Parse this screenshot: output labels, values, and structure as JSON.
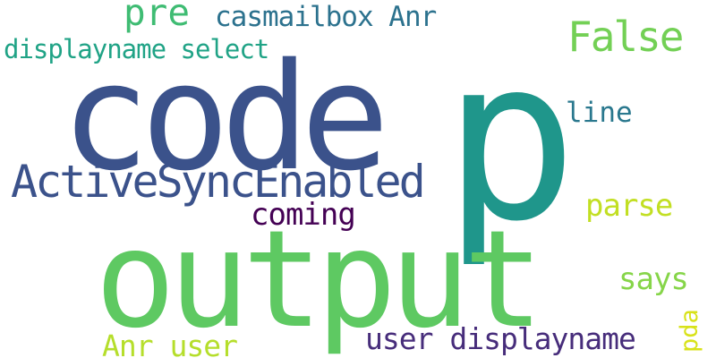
{
  "words": [
    {
      "id": "p",
      "text": "p",
      "color": "#1f968b"
    },
    {
      "id": "code",
      "text": "code",
      "color": "#3b528b"
    },
    {
      "id": "output",
      "text": "output",
      "color": "#5ec962"
    },
    {
      "id": "activesyncenabled",
      "text": "ActiveSyncEnabled",
      "color": "#3b528b"
    },
    {
      "id": "false",
      "text": "False",
      "color": "#73d055"
    },
    {
      "id": "pre",
      "text": "pre",
      "color": "#3fbc73"
    },
    {
      "id": "casmailbox-anr",
      "text": "casmailbox Anr",
      "color": "#2c728e"
    },
    {
      "id": "displayname-select",
      "text": "displayname select",
      "color": "#20a386"
    },
    {
      "id": "line",
      "text": "line",
      "color": "#2a788e"
    },
    {
      "id": "coming",
      "text": "coming",
      "color": "#440154"
    },
    {
      "id": "parse",
      "text": "parse",
      "color": "#c2df23"
    },
    {
      "id": "says",
      "text": "says",
      "color": "#86d549"
    },
    {
      "id": "user-displayname",
      "text": "user displayname",
      "color": "#472d7b"
    },
    {
      "id": "anr-user",
      "text": "Anr user",
      "color": "#b5de2b"
    },
    {
      "id": "pda",
      "text": "pda",
      "color": "#d8e219",
      "orientation": "vertical"
    }
  ]
}
